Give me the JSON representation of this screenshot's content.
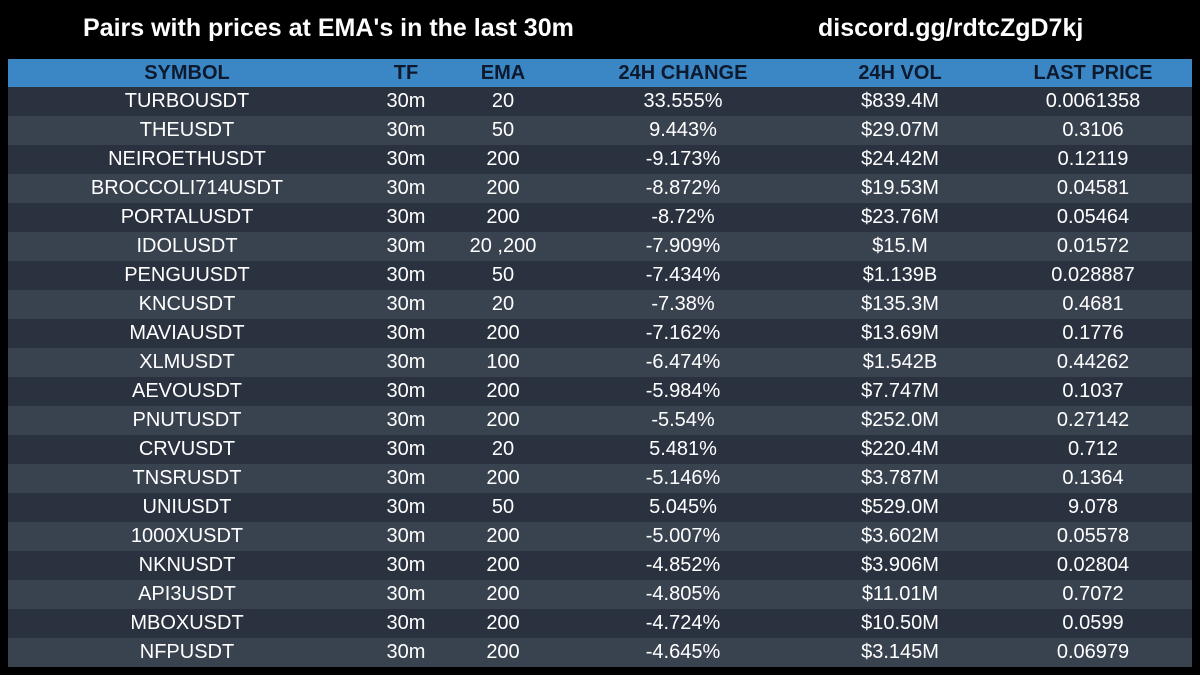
{
  "header": {
    "title": "Pairs with prices at EMA's in the last 30m",
    "discord": "discord.gg/rdtcZgD7kj"
  },
  "table": {
    "columns": [
      "SYMBOL",
      "TF",
      "EMA",
      "24H CHANGE",
      "24H VOL",
      "LAST PRICE"
    ],
    "rows": [
      [
        "TURBOUSDT",
        "30m",
        "20",
        "33.555%",
        "$839.4M",
        "0.0061358"
      ],
      [
        "THEUSDT",
        "30m",
        "50",
        "9.443%",
        "$29.07M",
        "0.3106"
      ],
      [
        "NEIROETHUSDT",
        "30m",
        "200",
        "-9.173%",
        "$24.42M",
        "0.12119"
      ],
      [
        "BROCCOLI714USDT",
        "30m",
        "200",
        "-8.872%",
        "$19.53M",
        "0.04581"
      ],
      [
        "PORTALUSDT",
        "30m",
        "200",
        "-8.72%",
        "$23.76M",
        "0.05464"
      ],
      [
        "IDOLUSDT",
        "30m",
        "20 ,200",
        "-7.909%",
        "$15.M",
        "0.01572"
      ],
      [
        "PENGUUSDT",
        "30m",
        "50",
        "-7.434%",
        "$1.139B",
        "0.028887"
      ],
      [
        "KNCUSDT",
        "30m",
        "20",
        "-7.38%",
        "$135.3M",
        "0.4681"
      ],
      [
        "MAVIAUSDT",
        "30m",
        "200",
        "-7.162%",
        "$13.69M",
        "0.1776"
      ],
      [
        "XLMUSDT",
        "30m",
        "100",
        "-6.474%",
        "$1.542B",
        "0.44262"
      ],
      [
        "AEVOUSDT",
        "30m",
        "200",
        "-5.984%",
        "$7.747M",
        "0.1037"
      ],
      [
        "PNUTUSDT",
        "30m",
        "200",
        "-5.54%",
        "$252.0M",
        "0.27142"
      ],
      [
        "CRVUSDT",
        "30m",
        "20",
        "5.481%",
        "$220.4M",
        "0.712"
      ],
      [
        "TNSRUSDT",
        "30m",
        "200",
        "-5.146%",
        "$3.787M",
        "0.1364"
      ],
      [
        "UNIUSDT",
        "30m",
        "50",
        "5.045%",
        "$529.0M",
        "9.078"
      ],
      [
        "1000XUSDT",
        "30m",
        "200",
        "-5.007%",
        "$3.602M",
        "0.05578"
      ],
      [
        "NKNUSDT",
        "30m",
        "200",
        "-4.852%",
        "$3.906M",
        "0.02804"
      ],
      [
        "API3USDT",
        "30m",
        "200",
        "-4.805%",
        "$11.01M",
        "0.7072"
      ],
      [
        "MBOXUSDT",
        "30m",
        "200",
        "-4.724%",
        "$10.50M",
        "0.0599"
      ],
      [
        "NFPUSDT",
        "30m",
        "200",
        "-4.645%",
        "$3.145M",
        "0.06979"
      ]
    ]
  },
  "colors": {
    "background": "#000000",
    "header_row": "#3b87c6",
    "row_dark": "#2a3240",
    "row_light": "#39424f",
    "text": "#ffffff"
  }
}
